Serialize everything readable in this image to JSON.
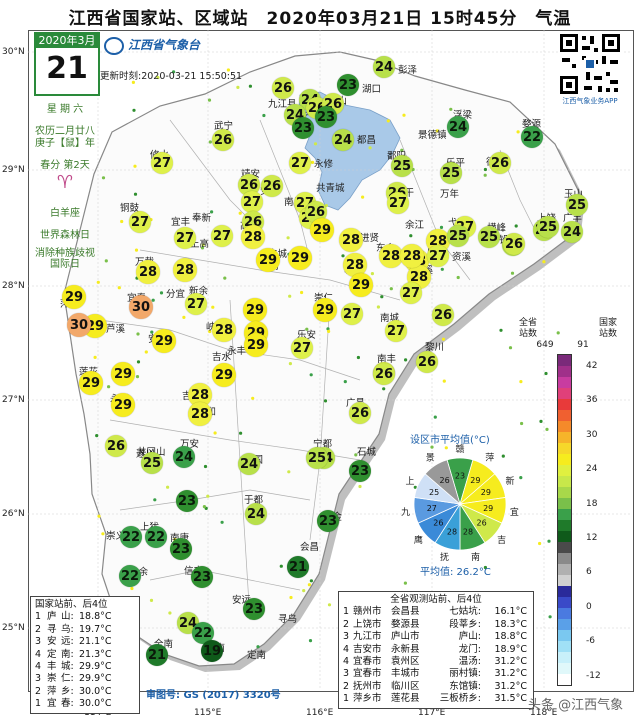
{
  "title": "江西省国家站、区域站　2020年03月21日 15时45分　气温",
  "date_box": {
    "month": "2020年3月",
    "day": "21"
  },
  "side_info": [
    "星 期 六",
    "农历二月廿八",
    "庚子【鼠】年",
    "春分 第2天",
    "白羊座",
    "世界森林日",
    "消除种族歧视国际日"
  ],
  "logo_text": "江西省气象台",
  "update_time": "更新时刻:2020-03-21 15:50:51",
  "qr_label": "江西气象业务APP",
  "lat_labels": [
    "30°N",
    "29°N",
    "28°N",
    "27°N",
    "26°N",
    "25°N"
  ],
  "lon_labels": [
    "114°E",
    "115°E",
    "116°E",
    "117°E",
    "118°E"
  ],
  "stations": [
    {
      "v": "24",
      "c": "#b8e04a"
    },
    {
      "v": "23",
      "c": "#2f8f2f"
    },
    {
      "v": "26",
      "c": "#cfe94a"
    },
    {
      "v": "24",
      "c": "#b8e04a"
    },
    {
      "v": "26",
      "c": "#cfe94a"
    },
    {
      "v": "26",
      "c": "#cfe94a"
    },
    {
      "v": "23",
      "c": "#2f8f2f"
    },
    {
      "v": "24",
      "c": "#b8e04a"
    },
    {
      "v": "23",
      "c": "#2f8f2f"
    },
    {
      "v": "24",
      "c": "#3aa04a"
    },
    {
      "v": "22",
      "c": "#3aa04a"
    },
    {
      "v": "26",
      "c": "#cfe94a"
    },
    {
      "v": "27",
      "c": "#def04a"
    },
    {
      "v": "24",
      "c": "#b8e04a"
    },
    {
      "v": "27",
      "c": "#def04a"
    },
    {
      "v": "26",
      "c": "#cfe94a"
    },
    {
      "v": "26",
      "c": "#cfe94a"
    },
    {
      "v": "25",
      "c": "#b8e04a"
    },
    {
      "v": "25",
      "c": "#b8e04a"
    },
    {
      "v": "26",
      "c": "#cfe94a"
    },
    {
      "v": "26",
      "c": "#cfe94a"
    },
    {
      "v": "27",
      "c": "#def04a"
    },
    {
      "v": "27",
      "c": "#def04a"
    },
    {
      "v": "26",
      "c": "#cfe94a"
    },
    {
      "v": "27",
      "c": "#def04a"
    },
    {
      "v": "26",
      "c": "#cfe94a"
    },
    {
      "v": "27",
      "c": "#def04a"
    },
    {
      "v": "28",
      "c": "#f0f040"
    },
    {
      "v": "29",
      "c": "#f6ec1e"
    },
    {
      "v": "27",
      "c": "#def04a"
    },
    {
      "v": "25",
      "c": "#b8e04a"
    },
    {
      "v": "25",
      "c": "#b8e04a"
    },
    {
      "v": "27",
      "c": "#def04a"
    },
    {
      "v": "27",
      "c": "#def04a"
    },
    {
      "v": "28",
      "c": "#f0f040"
    },
    {
      "v": "27",
      "c": "#def04a"
    },
    {
      "v": "28",
      "c": "#f0f040"
    },
    {
      "v": "28",
      "c": "#f0f040"
    },
    {
      "v": "29",
      "c": "#f6ec1e"
    },
    {
      "v": "28",
      "c": "#f0f040"
    },
    {
      "v": "28",
      "c": "#f0f040"
    },
    {
      "v": "28",
      "c": "#f0f040"
    },
    {
      "v": "28",
      "c": "#f0f040"
    },
    {
      "v": "27",
      "c": "#def04a"
    },
    {
      "v": "25",
      "c": "#b8e04a"
    },
    {
      "v": "25",
      "c": "#b8e04a"
    },
    {
      "v": "26",
      "c": "#cfe94a"
    },
    {
      "v": "25",
      "c": "#b8e04a"
    },
    {
      "v": "24",
      "c": "#b8e04a"
    },
    {
      "v": "25",
      "c": "#b8e04a"
    },
    {
      "v": "28",
      "c": "#f0f040"
    },
    {
      "v": "29",
      "c": "#f6ec1e"
    },
    {
      "v": "28",
      "c": "#f0f040"
    },
    {
      "v": "27",
      "c": "#def04a"
    },
    {
      "v": "26",
      "c": "#cfe94a"
    },
    {
      "v": "29",
      "c": "#f6ec1e"
    },
    {
      "v": "30",
      "c": "#f2a86a"
    },
    {
      "v": "29",
      "c": "#f6ec1e"
    },
    {
      "v": "27",
      "c": "#def04a"
    },
    {
      "v": "29",
      "c": "#f6ec1e"
    },
    {
      "v": "30",
      "c": "#f2a86a"
    },
    {
      "v": "29",
      "c": "#f6ec1e"
    },
    {
      "v": "29",
      "c": "#f6ec1e"
    },
    {
      "v": "29",
      "c": "#f6ec1e"
    },
    {
      "v": "27",
      "c": "#def04a"
    },
    {
      "v": "28",
      "c": "#f0f040"
    },
    {
      "v": "29",
      "c": "#f6ec1e"
    },
    {
      "v": "27",
      "c": "#def04a"
    },
    {
      "v": "27",
      "c": "#def04a"
    },
    {
      "v": "29",
      "c": "#f6ec1e"
    },
    {
      "v": "29",
      "c": "#f6ec1e"
    },
    {
      "v": "29",
      "c": "#f6ec1e"
    },
    {
      "v": "28",
      "c": "#f0f040"
    },
    {
      "v": "27",
      "c": "#def04a"
    },
    {
      "v": "26",
      "c": "#cfe94a"
    },
    {
      "v": "29",
      "c": "#f6ec1e"
    },
    {
      "v": "29",
      "c": "#f6ec1e"
    },
    {
      "v": "28",
      "c": "#f0f040"
    },
    {
      "v": "26",
      "c": "#cfe94a"
    },
    {
      "v": "26",
      "c": "#cfe94a"
    },
    {
      "v": "24",
      "c": "#b8e04a"
    },
    {
      "v": "25",
      "c": "#b8e04a"
    },
    {
      "v": "25",
      "c": "#b8e04a"
    },
    {
      "v": "24",
      "c": "#3aa04a"
    },
    {
      "v": "26",
      "c": "#cfe94a"
    },
    {
      "v": "24",
      "c": "#b8e04a"
    },
    {
      "v": "23",
      "c": "#2f8f2f"
    },
    {
      "v": "23",
      "c": "#2f8f2f"
    },
    {
      "v": "24",
      "c": "#b8e04a"
    },
    {
      "v": "22",
      "c": "#3aa04a"
    },
    {
      "v": "23",
      "c": "#2f8f2f"
    },
    {
      "v": "22",
      "c": "#3aa04a"
    },
    {
      "v": "23",
      "c": "#2f8f2f"
    },
    {
      "v": "22",
      "c": "#3aa04a"
    },
    {
      "v": "23",
      "c": "#2f8f2f"
    },
    {
      "v": "21",
      "c": "#1f7a2a"
    },
    {
      "v": "23",
      "c": "#2f8f2f"
    },
    {
      "v": "24",
      "c": "#b8e04a"
    },
    {
      "v": "22",
      "c": "#3aa04a"
    },
    {
      "v": "21",
      "c": "#1f7a2a"
    },
    {
      "v": "19",
      "c": "#0f5a1a"
    }
  ],
  "city_labels": [
    "彭泽",
    "湖口",
    "九江县",
    "庐山",
    "德安",
    "都昌",
    "浮梁",
    "婺源",
    "武宁",
    "景德镇",
    "修水",
    "永修",
    "鄱阳",
    "乐平",
    "德兴",
    "玉山",
    "靖安",
    "安义",
    "共青城",
    "余干",
    "万年",
    "上饶",
    "广丰",
    "铜鼓",
    "宜丰",
    "奉新",
    "南昌县",
    "余江",
    "弋阳",
    "横峰",
    "铅山",
    "万载",
    "高安",
    "丰城",
    "东乡",
    "鹰潭",
    "贵溪",
    "上高",
    "樟树",
    "进贤",
    "萍乡",
    "宜春",
    "分宜",
    "新余",
    "临川",
    "金溪",
    "资溪",
    "芦溪",
    "新干",
    "崇仁",
    "南城",
    "莲花",
    "安福",
    "峡江",
    "乐安",
    "宜黄",
    "黎川",
    "永新",
    "吉安",
    "吉水",
    "永丰",
    "南丰",
    "井冈山",
    "泰和",
    "广昌",
    "遂川",
    "万安",
    "宁都",
    "石城",
    "兴国",
    "瑞金",
    "上犹",
    "南康",
    "于都",
    "会昌",
    "崇义",
    "大余",
    "信丰",
    "安远",
    "寻乌",
    "全南",
    "龙南",
    "定南"
  ],
  "left_table": {
    "title": "国家站前、后4位",
    "rows": [
      [
        "1",
        "庐",
        "山:",
        "18.8°C"
      ],
      [
        "2",
        "寻",
        "乌:",
        "19.7°C"
      ],
      [
        "3",
        "安",
        "远:",
        "21.1°C"
      ],
      [
        "4",
        "定",
        "南:",
        "21.3°C"
      ],
      [
        "4",
        "丰",
        "城:",
        "29.9°C"
      ],
      [
        "3",
        "崇",
        "仁:",
        "29.9°C"
      ],
      [
        "2",
        "萍",
        "乡:",
        "30.0°C"
      ],
      [
        "1",
        "宜",
        "春:",
        "30.0°C"
      ]
    ]
  },
  "right_table": {
    "title": "全省观测站前、后4位",
    "rows": [
      [
        "1",
        "赣州市",
        "会昌县",
        "七姑坑:",
        "16.1°C"
      ],
      [
        "2",
        "上饶市",
        "婺源县",
        "段莘乡:",
        "18.3°C"
      ],
      [
        "3",
        "九江市",
        "庐山市",
        "庐山:",
        "18.8°C"
      ],
      [
        "4",
        "吉安市",
        "永新县",
        "龙门:",
        "18.9°C"
      ],
      [
        "4",
        "宜春市",
        "袁州区",
        "温汤:",
        "31.2°C"
      ],
      [
        "3",
        "宜春市",
        "丰城市",
        "丽村镇:",
        "31.2°C"
      ],
      [
        "2",
        "抚州市",
        "临川区",
        "东馆镇:",
        "31.2°C"
      ],
      [
        "1",
        "萍乡市",
        "莲花县",
        "三板桥乡:",
        "31.5°C"
      ]
    ]
  },
  "pie": {
    "title": "设区市平均值(°C)",
    "avg": "平均值: 26.2°C",
    "outer_labels": [
      "赣",
      "萍",
      "新",
      "宜",
      "吉",
      "南",
      "抚",
      "鹰",
      "九",
      "上",
      "景"
    ],
    "slices": [
      {
        "label": "赣",
        "value": "23",
        "color": "#3aa04a"
      },
      {
        "label": "萍",
        "value": "29",
        "color": "#f6ec1e"
      },
      {
        "label": "新",
        "value": "29",
        "color": "#f6ec1e"
      },
      {
        "label": "宜",
        "value": "29",
        "color": "#f6ec1e"
      },
      {
        "label": "吉",
        "value": "26",
        "color": "#cfe94a"
      },
      {
        "label": "南",
        "value": "28",
        "color": "#3aa04a"
      },
      {
        "label": "抚",
        "value": "28",
        "color": "#3aa0d8"
      },
      {
        "label": "鹰",
        "value": "26",
        "color": "#3a8ad8"
      },
      {
        "label": "九",
        "value": "27",
        "color": "#5a9ae0"
      },
      {
        "label": "上",
        "value": "25",
        "color": "#cfe0f6"
      },
      {
        "label": "景",
        "value": "26",
        "color": "#999999"
      }
    ]
  },
  "colorbar": {
    "header_left": "全省\n站数",
    "header_right": "国家\n站数",
    "count_total": "649",
    "count_nat": "91",
    "ticks": [
      "42",
      "36",
      "30",
      "24",
      "18",
      "12",
      "6",
      "0",
      "-6",
      "-12"
    ],
    "colors": [
      "#7a2a7a",
      "#a0308a",
      "#c83ca0",
      "#e0407a",
      "#e83a3a",
      "#f06030",
      "#f58a2a",
      "#f6b42a",
      "#f6d82a",
      "#f6ec1e",
      "#e0f040",
      "#c8e84a",
      "#a8d84a",
      "#7ac04a",
      "#3aa04a",
      "#1f7a2a",
      "#0f5a1a",
      "#4a4a4a",
      "#8a8a8a",
      "#b0b0b0",
      "#d0d0d0",
      "#2a2a9a",
      "#3a4ac8",
      "#4a7ae0",
      "#5aa0e8",
      "#7ac8f0",
      "#a0e0f6",
      "#c8f0fa",
      "#e0f8fa",
      "#ffffff"
    ]
  },
  "audit": "审图号: GS (2017) 3320号",
  "watermark": "头条 @江西气象"
}
